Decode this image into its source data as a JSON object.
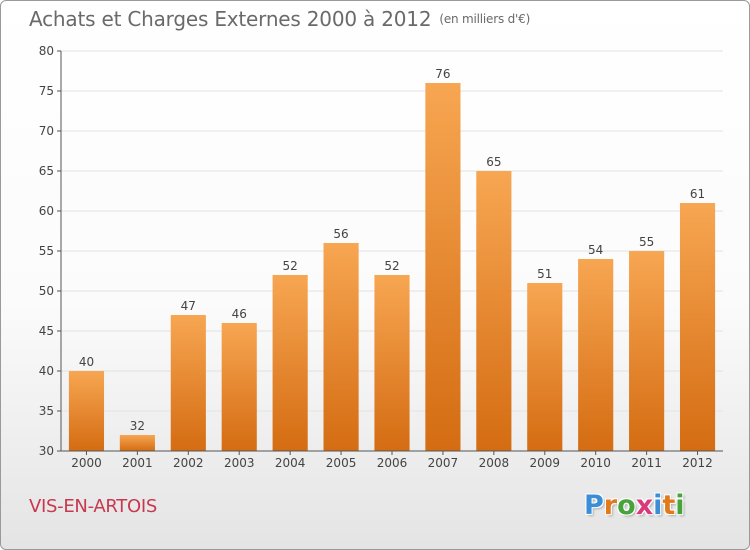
{
  "title": "Achats et Charges Externes 2000 à 2012",
  "unit_label": "(en milliers d'€)",
  "location": "VIS-EN-ARTOIS",
  "brand": {
    "letters": [
      "P",
      "r",
      "o",
      "x",
      "i",
      "t",
      "i"
    ],
    "colors": [
      "#3a8ed8",
      "#e07a1c",
      "#47a33a",
      "#d93a7a",
      "#3a8ed8",
      "#e07a1c",
      "#47a33a"
    ]
  },
  "colors": {
    "bar_top": "#f7a652",
    "bar_bottom": "#d46c12",
    "grid": "#e2e2e2",
    "axis": "#555555",
    "label": "#444444"
  },
  "chart_data": {
    "type": "bar",
    "categories": [
      "2000",
      "2001",
      "2002",
      "2003",
      "2004",
      "2005",
      "2006",
      "2007",
      "2008",
      "2009",
      "2010",
      "2011",
      "2012"
    ],
    "values": [
      40,
      32,
      47,
      46,
      52,
      56,
      52,
      76,
      65,
      51,
      54,
      55,
      61
    ],
    "ylim": [
      30,
      80
    ],
    "yticks": [
      30,
      35,
      40,
      45,
      50,
      55,
      60,
      65,
      70,
      75,
      80
    ],
    "grid": true,
    "data_labels": true
  }
}
